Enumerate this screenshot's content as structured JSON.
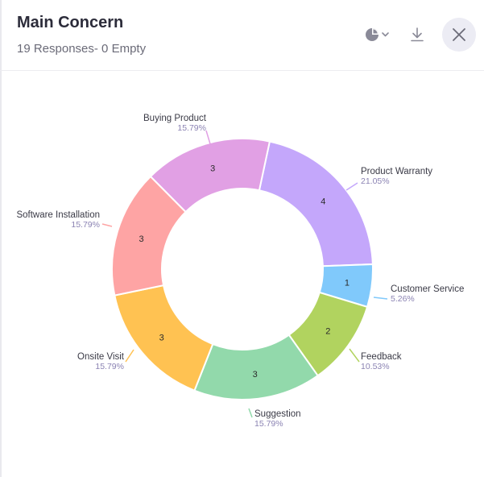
{
  "header": {
    "title": "Main Concern",
    "subtitle": "19 Responses- 0 Empty"
  },
  "icons": {
    "chart_type": "pie-chart-icon",
    "download": "download-icon",
    "close": "close-icon"
  },
  "chart_data": {
    "type": "pie",
    "donut": true,
    "title": "Main Concern",
    "total": 19,
    "slices": [
      {
        "label": "Product Warranty",
        "value": 4,
        "percent": "21.05%",
        "color": "#c4a7fb"
      },
      {
        "label": "Customer Service",
        "value": 1,
        "percent": "5.26%",
        "color": "#80c9fb"
      },
      {
        "label": "Feedback",
        "value": 2,
        "percent": "10.53%",
        "color": "#b1d35f"
      },
      {
        "label": "Suggestion",
        "value": 3,
        "percent": "15.79%",
        "color": "#92d9ab"
      },
      {
        "label": "Onsite Visit",
        "value": 3,
        "percent": "15.79%",
        "color": "#ffc252"
      },
      {
        "label": "Software Installation",
        "value": 3,
        "percent": "15.79%",
        "color": "#fea4a4"
      },
      {
        "label": "Buying Product",
        "value": 3,
        "percent": "15.79%",
        "color": "#e1a0e4"
      }
    ]
  }
}
